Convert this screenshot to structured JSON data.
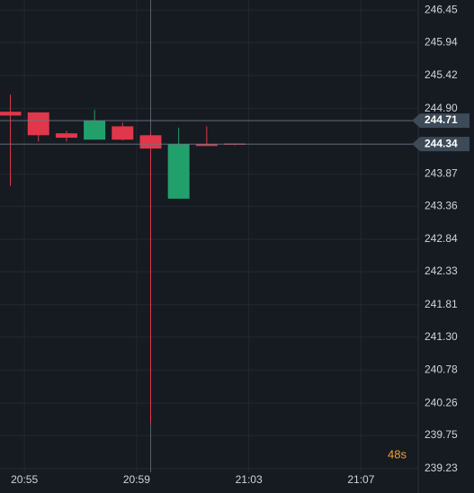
{
  "chart_data": {
    "type": "candlestick",
    "x": [
      1254.5,
      1255.5,
      1256.5,
      1257.5,
      1258.5,
      1259.5,
      1260.5,
      1261.5,
      1262.5
    ],
    "open": [
      244.85,
      244.84,
      244.51,
      244.41,
      244.62,
      244.48,
      243.48,
      244.34,
      244.35
    ],
    "high": [
      245.12,
      244.84,
      244.55,
      244.88,
      244.68,
      244.54,
      244.6,
      244.62,
      244.35
    ],
    "low": [
      243.68,
      244.38,
      244.38,
      244.41,
      244.4,
      239.95,
      243.48,
      244.31,
      244.32
    ],
    "close": [
      244.79,
      244.48,
      244.44,
      244.71,
      244.41,
      244.27,
      244.34,
      244.31,
      244.33
    ],
    "up_color": "#22a06b",
    "down_color": "#e0374a",
    "xlim": [
      1254.13,
      1269.04
    ],
    "xticks": [
      {
        "value": 1255,
        "label": "20:55"
      },
      {
        "value": 1259,
        "label": "20:59"
      },
      {
        "value": 1263,
        "label": "21:03"
      },
      {
        "value": 1267,
        "label": "21:07"
      }
    ],
    "ylim": [
      239.17,
      246.61
    ],
    "yticks": [
      246.45,
      245.94,
      245.42,
      {
        "value": 244.9,
        "label": "244.90"
      },
      243.87,
      243.36,
      242.84,
      242.33,
      241.81,
      {
        "value": 241.3,
        "label": "241.30"
      },
      240.78,
      240.26,
      239.75,
      239.23
    ],
    "price_lines": [
      244.71,
      244.34
    ],
    "countdown": "48s",
    "grid": true
  }
}
